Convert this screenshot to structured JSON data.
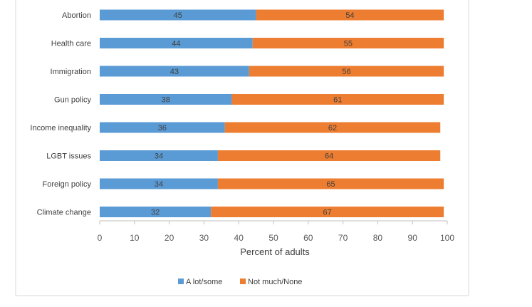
{
  "chart_data": {
    "type": "bar",
    "orientation": "horizontal",
    "stacked": true,
    "categories": [
      "Abortion",
      "Health care",
      "Immigration",
      "Gun policy",
      "Income inequality",
      "LGBT issues",
      "Foreign policy",
      "Climate change"
    ],
    "series": [
      {
        "name": "A lot/some",
        "color": "#5b9bd5",
        "values": [
          45,
          44,
          43,
          38,
          36,
          34,
          34,
          32
        ]
      },
      {
        "name": "Not much/None",
        "color": "#ed7d31",
        "values": [
          54,
          55,
          56,
          61,
          62,
          64,
          65,
          67
        ]
      }
    ],
    "xlabel": "Percent of adults",
    "ylabel": "",
    "xlim": [
      0,
      100
    ],
    "xticks": [
      0,
      10,
      20,
      30,
      40,
      50,
      60,
      70,
      80,
      90,
      100
    ],
    "grid": false,
    "legend_position": "bottom"
  }
}
